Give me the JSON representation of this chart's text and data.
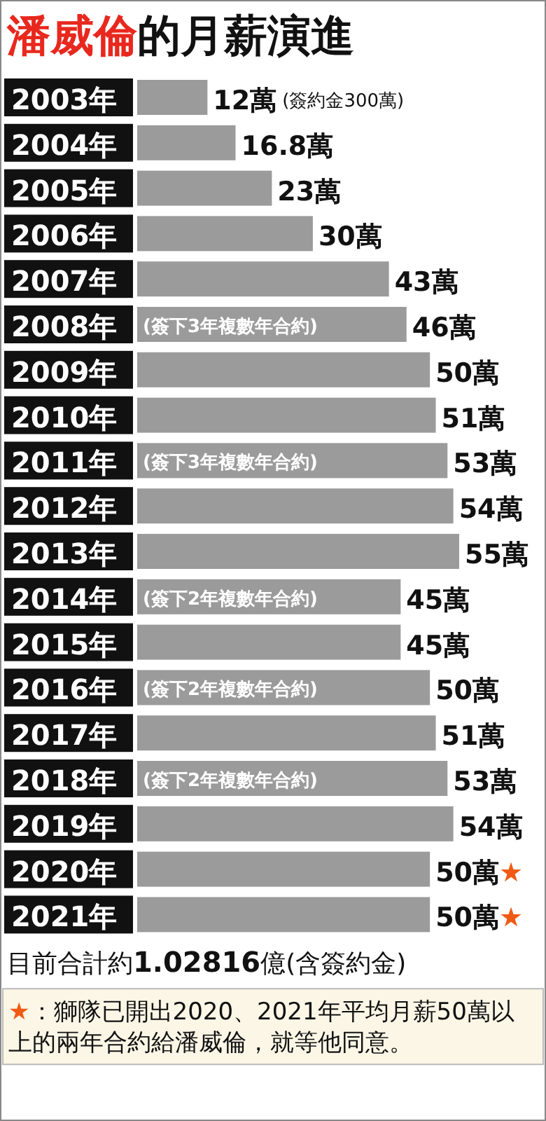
{
  "chart_data": {
    "type": "bar",
    "orientation": "horizontal",
    "title": "潘威倫的月薪演進",
    "categories": [
      "2003年",
      "2004年",
      "2005年",
      "2006年",
      "2007年",
      "2008年",
      "2009年",
      "2010年",
      "2011年",
      "2012年",
      "2013年",
      "2014年",
      "2015年",
      "2016年",
      "2017年",
      "2018年",
      "2019年",
      "2020年",
      "2021年"
    ],
    "values": [
      12,
      16.8,
      23,
      30,
      43,
      46,
      50,
      51,
      53,
      54,
      55,
      45,
      45,
      50,
      51,
      53,
      54,
      50,
      50
    ],
    "value_labels": [
      "12萬",
      "16.8萬",
      "23萬",
      "30萬",
      "43萬",
      "46萬",
      "50萬",
      "51萬",
      "53萬",
      "54萬",
      "55萬",
      "45萬",
      "45萬",
      "50萬",
      "51萬",
      "53萬",
      "54萬",
      "50萬★",
      "50萬★"
    ],
    "color": "#9b9b9b",
    "annotations": [
      "(簽約金300萬)",
      {
        "text": "(簽下3年複數年合約)",
        "y": "2008年"
      },
      {
        "text": "(簽下3年複數年合約)",
        "y": "2011年"
      },
      {
        "text": "(簽下2年複數年合約)",
        "y": "2014年"
      },
      {
        "text": "(簽下2年複數年合約)",
        "y": "2016年"
      },
      {
        "text": "(簽下2年複數年合約)",
        "y": "2018年"
      },
      "目前合計約1.02816億(含簽約金)",
      "★：獅隊已開出2020、2021年平均月薪50萬以上的兩年合約給潘威倫，就等他同意。"
    ]
  }
}
